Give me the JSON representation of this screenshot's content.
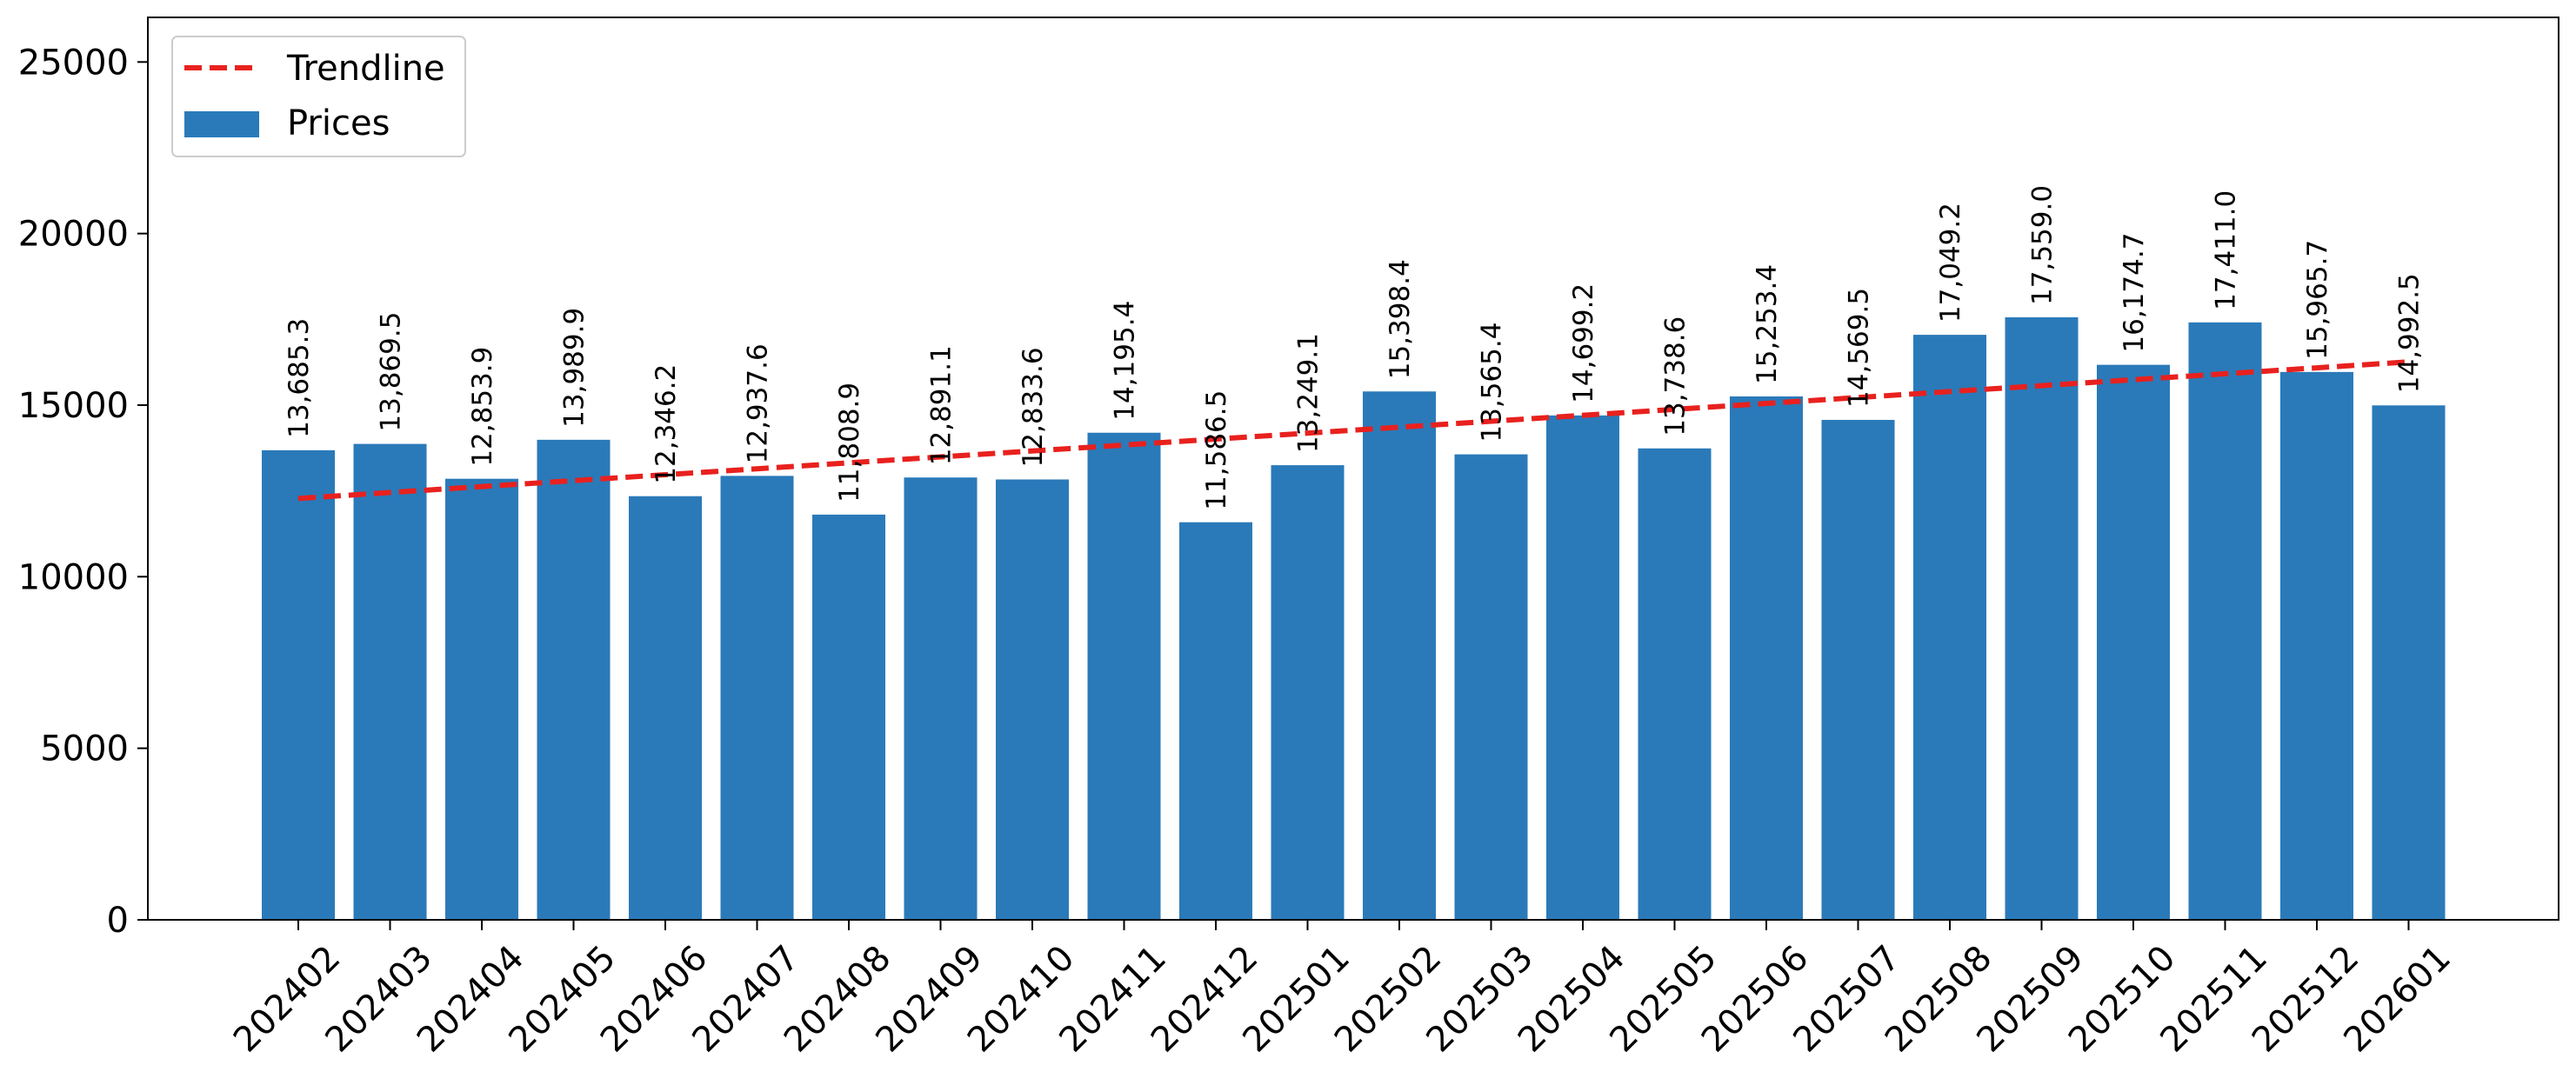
{
  "chart_data": {
    "type": "bar",
    "categories": [
      "202402",
      "202403",
      "202404",
      "202405",
      "202406",
      "202407",
      "202408",
      "202409",
      "202410",
      "202411",
      "202412",
      "202501",
      "202502",
      "202503",
      "202504",
      "202505",
      "202506",
      "202507",
      "202508",
      "202509",
      "202510",
      "202511",
      "202512",
      "202601"
    ],
    "series": [
      {
        "name": "Prices",
        "values": [
          13685.3,
          13869.5,
          12853.9,
          13989.9,
          12346.2,
          12937.6,
          11808.9,
          12891.1,
          12833.6,
          14195.4,
          11586.5,
          13249.1,
          15398.4,
          13565.4,
          14699.2,
          13738.6,
          15253.4,
          14569.5,
          17049.2,
          17559.0,
          16174.7,
          17411.0,
          15965.7,
          14992.5
        ],
        "labels": [
          "13,685.3",
          "13,869.5",
          "12,853.9",
          "13,989.9",
          "12,346.2",
          "12,937.6",
          "11,808.9",
          "12,891.1",
          "12,833.6",
          "14,195.4",
          "11,586.5",
          "13,249.1",
          "15,398.4",
          "13,565.4",
          "14,699.2",
          "13,738.6",
          "15,253.4",
          "14,569.5",
          "17,049.2",
          "17,559.0",
          "16,174.7",
          "17,411.0",
          "15,965.7",
          "14,992.5"
        ],
        "color": "#2a7ab9"
      }
    ],
    "trendline": {
      "name": "Trendline",
      "start": 12280,
      "end": 16260,
      "color": "#e8211e",
      "style": "dashed"
    },
    "yticks": [
      "0",
      "5000",
      "10000",
      "15000",
      "20000",
      "25000"
    ],
    "ylim": [
      0,
      26300
    ],
    "grid": false,
    "legend": "top-left",
    "title": "",
    "xlabel": "",
    "ylabel": ""
  }
}
